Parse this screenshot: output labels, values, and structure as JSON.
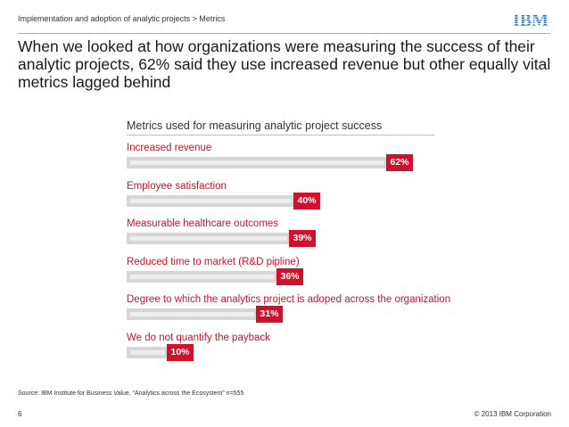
{
  "header": {
    "breadcrumb": "Implementation and adoption of analytic projects > Metrics",
    "logo_text": "IBM",
    "brand_color": "#1f70c1"
  },
  "page": {
    "title": "When we looked at how organizations were measuring the success of their analytic projects, 62% said they use increased revenue but other equally vital metrics lagged behind"
  },
  "chart_data": {
    "type": "bar",
    "orientation": "horizontal",
    "title": "Metrics used for measuring analytic project success",
    "categories": [
      "Increased revenue",
      "Employee satisfaction",
      "Measurable healthcare outcomes",
      "Reduced time to market (R&D pipline)",
      "Degree to which the analytics project is adoped across the organization",
      "We do not quantify the payback"
    ],
    "values": [
      62,
      40,
      39,
      36,
      31,
      10
    ],
    "value_labels": [
      "62%",
      "40%",
      "39%",
      "36%",
      "31%",
      "10%"
    ],
    "unit": "%",
    "xlim": [
      0,
      62
    ],
    "label_color": "#d0112b",
    "bar_color": "#d6d6d6"
  },
  "footer": {
    "source": "Source: IBM Institute for Business Value, “Analytics across the Ecosystem” n=555",
    "page_number": "6",
    "copyright": "© 2013 IBM Corporation"
  }
}
